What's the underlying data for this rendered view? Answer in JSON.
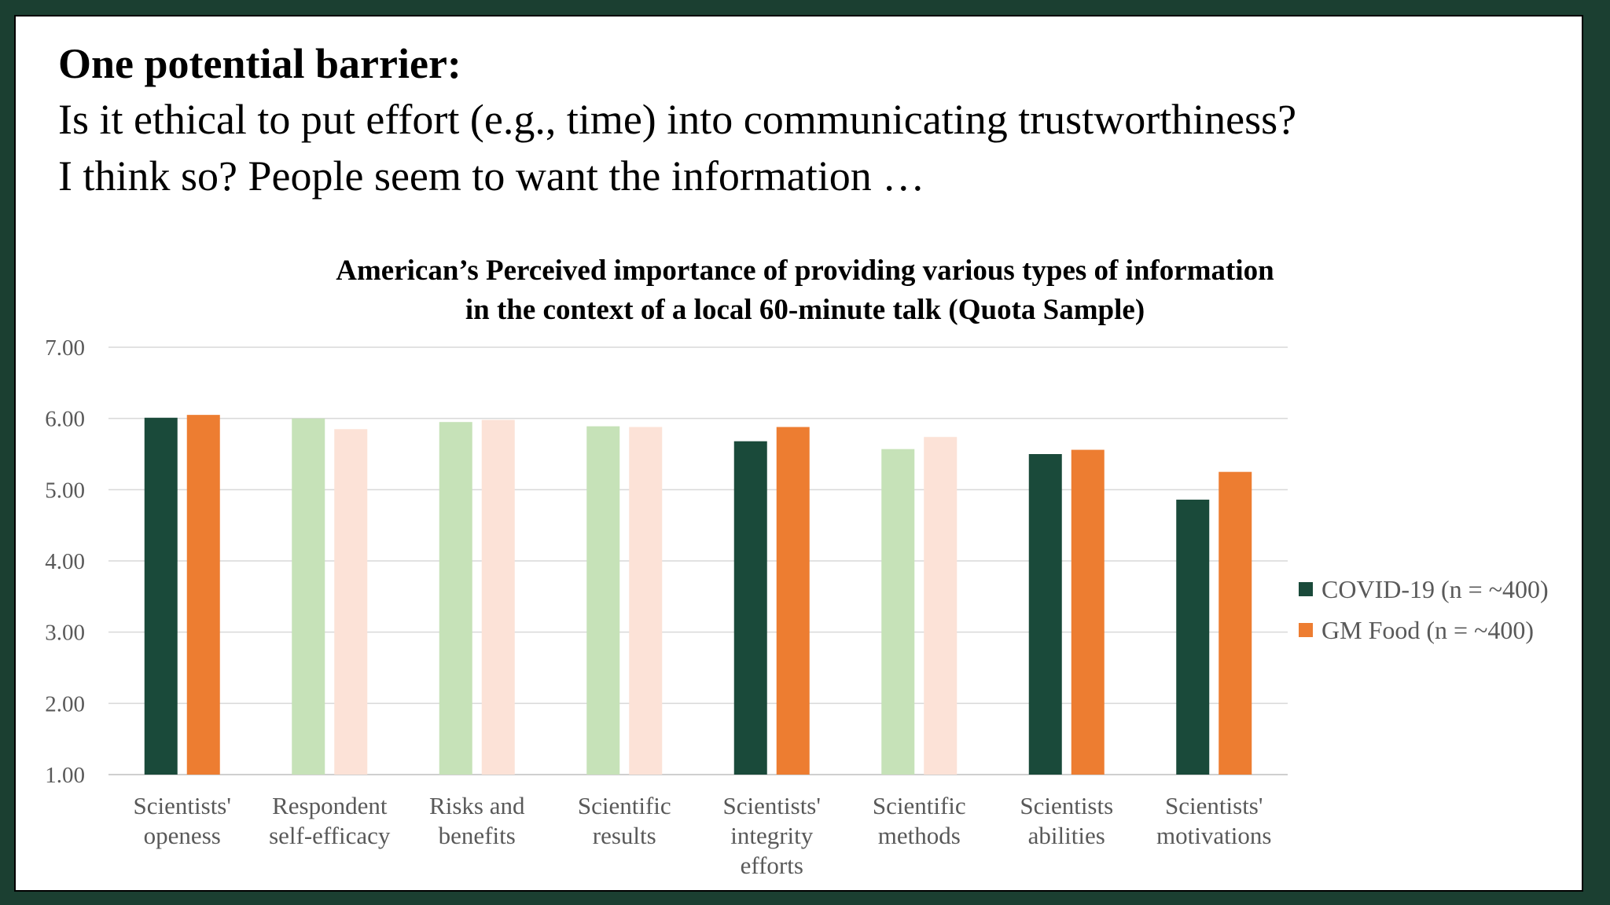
{
  "slide": {
    "heading": "One potential barrier:",
    "line1": "Is it ethical to put effort (e.g., time) into communicating trustworthiness?",
    "line2": "I think so? People seem to want the information …"
  },
  "chart_data": {
    "type": "bar",
    "title": "American’s Perceived importance of providing various types of information in the context of a local 60-minute talk (Quota Sample)",
    "title_lines": [
      "American’s Perceived importance of providing various types of information",
      "in the context of a local 60-minute talk (Quota Sample)"
    ],
    "categories": [
      [
        "Scientists'",
        "openess"
      ],
      [
        "Respondent",
        "self-efficacy"
      ],
      [
        "Risks and",
        "benefits"
      ],
      [
        "Scientific",
        "results"
      ],
      [
        "Scientists'",
        "integrity",
        "efforts"
      ],
      [
        "Scientific",
        "methods"
      ],
      [
        "Scientists",
        "abilities"
      ],
      [
        "Scientists'",
        "motivations"
      ]
    ],
    "highlighted": [
      true,
      false,
      false,
      false,
      true,
      false,
      true,
      true
    ],
    "series": [
      {
        "name": "COVID-19 (n = ~400)",
        "values": [
          6.01,
          6.0,
          5.95,
          5.89,
          5.68,
          5.57,
          5.5,
          4.86
        ],
        "color": "#1a4a3a",
        "faded_color": "#c6e2b8"
      },
      {
        "name": "GM Food (n = ~400)",
        "values": [
          6.05,
          5.85,
          5.98,
          5.88,
          5.88,
          5.74,
          5.56,
          5.25
        ],
        "color": "#ed7d31",
        "faded_color": "#fce2d7"
      }
    ],
    "y_ticks": [
      "1.00",
      "2.00",
      "3.00",
      "4.00",
      "5.00",
      "6.00",
      "7.00"
    ],
    "ylim": [
      1,
      7
    ],
    "grid": true,
    "legend_position": "right"
  }
}
